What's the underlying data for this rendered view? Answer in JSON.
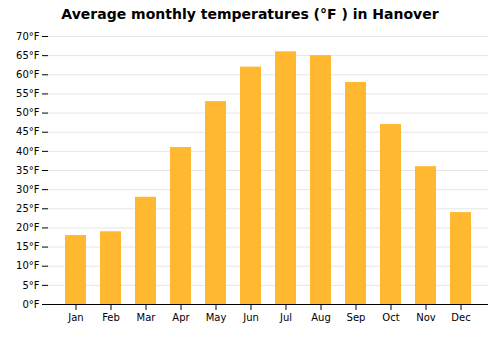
{
  "chart_data": {
    "type": "bar",
    "title": "Average monthly temperatures (°F ) in Hanover",
    "categories": [
      "Jan",
      "Feb",
      "Mar",
      "Apr",
      "May",
      "Jun",
      "Jul",
      "Aug",
      "Sep",
      "Oct",
      "Nov",
      "Dec"
    ],
    "values": [
      18,
      19,
      28,
      41,
      53,
      62,
      66,
      65,
      58,
      47,
      36,
      24
    ],
    "color": "#FFB830",
    "ylim": [
      0,
      70
    ],
    "yticks": [
      {
        "value": 0,
        "label": "0°F"
      },
      {
        "value": 5,
        "label": "5°F"
      },
      {
        "value": 10,
        "label": "10°F"
      },
      {
        "value": 15,
        "label": "15°F"
      },
      {
        "value": 20,
        "label": "20°F"
      },
      {
        "value": 25,
        "label": "25°F"
      },
      {
        "value": 30,
        "label": "30°F"
      },
      {
        "value": 35,
        "label": "35°F"
      },
      {
        "value": 40,
        "label": "40°F"
      },
      {
        "value": 45,
        "label": "45°F"
      },
      {
        "value": 50,
        "label": "50°F"
      },
      {
        "value": 55,
        "label": "55°F"
      },
      {
        "value": 60,
        "label": "60°F"
      },
      {
        "value": 65,
        "label": "65°F"
      },
      {
        "value": 70,
        "label": "70°F"
      }
    ],
    "grid": true
  }
}
